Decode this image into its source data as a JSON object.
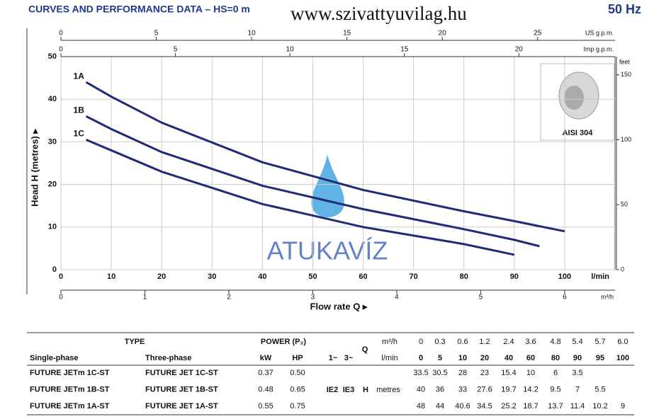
{
  "header": {
    "title": "CURVES AND PERFORMANCE DATA – HS=0 m",
    "site": "www.szivattyuvilag.hu",
    "frequency": "50 Hz"
  },
  "watermark": "ATUKAVÍZ",
  "inset": {
    "caption": "AISI 304"
  },
  "chart_data": {
    "type": "line",
    "xlabel": "Flow rate Q ▸",
    "ylabel": "Head H (metres) ▸",
    "x_unit": "l/min",
    "x": [
      5,
      10,
      20,
      40,
      60,
      80,
      90,
      95,
      100
    ],
    "series": [
      {
        "name": "1A",
        "color": "#1f2a78",
        "values": [
          44,
          40.6,
          34.5,
          25.2,
          18.7,
          13.7,
          11.4,
          10.2,
          9
        ]
      },
      {
        "name": "1B",
        "color": "#1f2a78",
        "values": [
          36,
          33,
          27.6,
          19.7,
          14.2,
          9.5,
          7,
          5.5,
          null
        ]
      },
      {
        "name": "1C",
        "color": "#1f2a78",
        "values": [
          30.5,
          28,
          23,
          15.4,
          10,
          6,
          3.5,
          null,
          null
        ]
      }
    ],
    "xlim": [
      0,
      110
    ],
    "ylim": [
      0,
      50
    ],
    "xticks": [
      0,
      10,
      20,
      30,
      40,
      50,
      60,
      70,
      80,
      90,
      100
    ],
    "yticks": [
      0,
      10,
      20,
      30,
      40,
      50
    ],
    "grid": true,
    "secondary_axes": [
      {
        "label": "US g.p.m.",
        "side": "top",
        "lim": [
          0,
          29.06
        ],
        "ticks": [
          0,
          5,
          10,
          15,
          20,
          25
        ]
      },
      {
        "label": "Imp g.p.m.",
        "side": "top",
        "lim": [
          0,
          24.2
        ],
        "ticks": [
          0,
          5,
          10,
          15,
          20
        ]
      },
      {
        "label": "m³/h",
        "side": "bottom",
        "lim": [
          0,
          6.6
        ],
        "ticks": [
          0,
          1,
          2,
          3,
          4,
          5,
          6
        ]
      },
      {
        "label": "feet",
        "side": "right",
        "lim": [
          0,
          164
        ],
        "ticks": [
          0,
          50,
          100,
          150
        ]
      }
    ]
  },
  "table": {
    "header": {
      "type": "TYPE",
      "power": "POWER (P₂)",
      "single": "Single-phase",
      "three": "Three-phase",
      "kw": "kW",
      "hp": "HP",
      "one": "1~",
      "three_ph": "3~",
      "q": "Q",
      "q_m3h_unit": "m³/h",
      "q_lmin_unit": "l/min",
      "h": "H",
      "h_unit": "metres",
      "ie2": "IE2",
      "ie3": "IE3"
    },
    "q_m3h": [
      "0",
      "0.3",
      "0.6",
      "1.2",
      "2.4",
      "3.6",
      "4.8",
      "5.4",
      "5.7",
      "6.0"
    ],
    "q_lmin": [
      "0",
      "5",
      "10",
      "20",
      "40",
      "60",
      "80",
      "90",
      "95",
      "100"
    ],
    "rows": [
      {
        "single": "FUTURE JETm 1C-ST",
        "three": "FUTURE JET 1C-ST",
        "kw": "0.37",
        "hp": "0.50",
        "h": [
          "33.5",
          "30.5",
          "28",
          "23",
          "15.4",
          "10",
          "6",
          "3.5",
          null,
          null
        ]
      },
      {
        "single": "FUTURE JETm 1B-ST",
        "three": "FUTURE JET 1B-ST",
        "kw": "0.48",
        "hp": "0.65",
        "h": [
          "40",
          "36",
          "33",
          "27.6",
          "19.7",
          "14.2",
          "9.5",
          "7",
          "5.5",
          null
        ]
      },
      {
        "single": "FUTURE JETm 1A-ST",
        "three": "FUTURE JET 1A-ST",
        "kw": "0.55",
        "hp": "0.75",
        "h": [
          "48",
          "44",
          "40.6",
          "34.5",
          "25.2",
          "18.7",
          "13.7",
          "11.4",
          "10.2",
          "9"
        ]
      }
    ]
  }
}
